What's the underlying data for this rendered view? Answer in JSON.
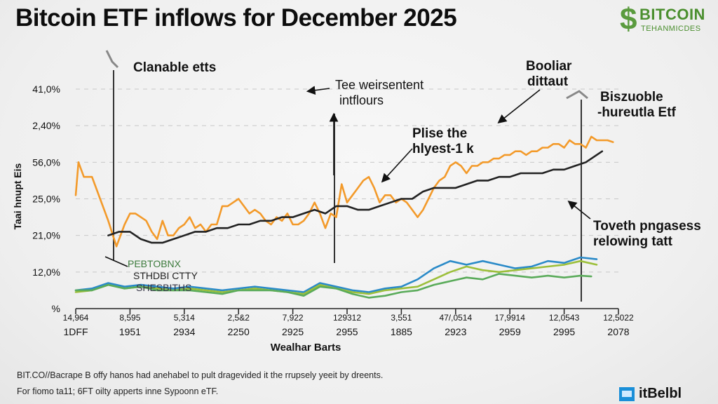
{
  "title": "Bitcoin ETF inflows for December 2025",
  "logo": {
    "brand": "BITCOIN",
    "tagline": "TEHANMICDES",
    "icon": "dollar-sign-icon"
  },
  "annotations": {
    "clanable": "Clanable etts",
    "weirsentent_line1": "Tee weirsentent",
    "weirsentent_line2": "intflours",
    "plise_line1": "Plise the",
    "plise_line2": "hlyest-1 k",
    "booliar_line1": "Booliar",
    "booliar_line2": "dittaut",
    "biszuoble_line1": "Biszuoble",
    "biszuoble_line2": "-hureutla Etf",
    "toveth_line1": "Toveth pngasess",
    "toveth_line2": "relowing tatt",
    "overlay_1": "PEBTOBNX",
    "overlay_2": "STHDBI CTTY",
    "overlay_3": "SHESBITHS"
  },
  "footer": {
    "line1": "BIT.CO//Bacrape B offy hanos had anehabel to pult dragevided it the rrupsely yeeit by dreents.",
    "line2": "For fiomo ta11; 6FT oilty apperts inne Sypoonn eTF."
  },
  "badge": {
    "text": "itBelbl",
    "icon": "screen-icon"
  },
  "colors": {
    "orange": "#f39a2a",
    "black": "#222222",
    "blue": "#2a8ac8",
    "yellowgreen": "#9cbf3a",
    "green": "#5aab5a",
    "grid": "#c8c8c8"
  },
  "chart_data": {
    "type": "line",
    "title": "Bitcoin ETF inflows for December 2025",
    "xlabel": "Wealhar Barts",
    "ylabel": "Taai hnupt Eis",
    "y_tick_labels": [
      "41,0%",
      "2,40%",
      "56,0%",
      "25,0%",
      "21,0%",
      "12,0%",
      "%"
    ],
    "ylim": [
      0,
      6
    ],
    "x_tick_labels_top": [
      "14,964",
      "8,595",
      "5,314",
      "2,5&2",
      "7,922",
      "129312",
      "3,551",
      "47/,0514",
      "17,9914",
      "12,0543",
      "12,5022"
    ],
    "x_tick_labels_bottom": [
      "1DFF",
      "1951",
      "2934",
      "2250",
      "2925",
      "2955",
      "1885",
      "2923",
      "2959",
      "2995",
      "2078"
    ],
    "xlim": [
      0,
      10
    ],
    "grid": true,
    "series": [
      {
        "name": "Orange",
        "color": "#f39a2a",
        "x": [
          0,
          0.05,
          0.15,
          0.3,
          0.45,
          0.6,
          0.75,
          0.9,
          1.0,
          1.1,
          1.2,
          1.3,
          1.4,
          1.5,
          1.6,
          1.7,
          1.8,
          1.9,
          2.0,
          2.1,
          2.2,
          2.3,
          2.4,
          2.5,
          2.6,
          2.7,
          2.8,
          2.9,
          3.0,
          3.1,
          3.2,
          3.3,
          3.4,
          3.5,
          3.6,
          3.7,
          3.8,
          3.9,
          4.0,
          4.1,
          4.2,
          4.3,
          4.4,
          4.5,
          4.6,
          4.7,
          4.8,
          4.9,
          5.0,
          5.1,
          5.2,
          5.3,
          5.4,
          5.5,
          5.6,
          5.7,
          5.8,
          5.9,
          6.0,
          6.1,
          6.2,
          6.3,
          6.4,
          6.5,
          6.6,
          6.7,
          6.8,
          6.9,
          7.0,
          7.1,
          7.2,
          7.3,
          7.4,
          7.5,
          7.6,
          7.7,
          7.8,
          7.9,
          8.0,
          8.1,
          8.2,
          8.3,
          8.4,
          8.5,
          8.6,
          8.7,
          8.8,
          8.9,
          9.0,
          9.1,
          9.2,
          9.3,
          9.4,
          9.5,
          9.6,
          9.7,
          9.8,
          9.9
        ],
        "y": [
          3.1,
          4.0,
          3.6,
          3.6,
          3.0,
          2.4,
          1.7,
          2.3,
          2.6,
          2.6,
          2.5,
          2.4,
          2.1,
          1.9,
          2.4,
          2.0,
          2.0,
          2.2,
          2.3,
          2.5,
          2.2,
          2.3,
          2.1,
          2.3,
          2.3,
          2.8,
          2.8,
          2.9,
          3.0,
          2.8,
          2.6,
          2.7,
          2.6,
          2.4,
          2.3,
          2.5,
          2.4,
          2.6,
          2.3,
          2.3,
          2.4,
          2.6,
          2.9,
          2.6,
          2.2,
          2.6,
          2.5,
          3.4,
          2.9,
          3.1,
          3.3,
          3.5,
          3.6,
          3.3,
          2.9,
          3.1,
          3.1,
          2.9,
          3.0,
          2.9,
          2.7,
          2.5,
          2.7,
          3.0,
          3.3,
          3.5,
          3.6,
          3.9,
          4.0,
          3.9,
          3.7,
          3.9,
          3.9,
          4.0,
          4.0,
          4.1,
          4.1,
          4.2,
          4.2,
          4.3,
          4.3,
          4.2,
          4.3,
          4.3,
          4.4,
          4.4,
          4.5,
          4.5,
          4.4,
          4.6,
          4.5,
          4.5,
          4.4,
          4.7,
          4.6,
          4.6,
          4.6,
          4.55
        ],
        "description": "Volatile orange series rising toward end of month"
      },
      {
        "name": "Black",
        "color": "#222222",
        "x": [
          0.6,
          0.8,
          1.0,
          1.2,
          1.4,
          1.6,
          1.8,
          2.0,
          2.2,
          2.4,
          2.6,
          2.8,
          3.0,
          3.2,
          3.4,
          3.6,
          3.8,
          4.0,
          4.2,
          4.4,
          4.6,
          4.8,
          5.0,
          5.2,
          5.4,
          5.6,
          5.8,
          6.0,
          6.2,
          6.4,
          6.6,
          6.8,
          7.0,
          7.2,
          7.4,
          7.6,
          7.8,
          8.0,
          8.2,
          8.4,
          8.6,
          8.8,
          9.0,
          9.2,
          9.4,
          9.6,
          9.7
        ],
        "y": [
          2.0,
          2.1,
          2.1,
          1.9,
          1.8,
          1.8,
          1.9,
          2.0,
          2.1,
          2.1,
          2.2,
          2.2,
          2.3,
          2.3,
          2.4,
          2.4,
          2.5,
          2.5,
          2.6,
          2.7,
          2.6,
          2.8,
          2.8,
          2.7,
          2.7,
          2.8,
          2.9,
          3.0,
          3.0,
          3.2,
          3.3,
          3.3,
          3.3,
          3.4,
          3.5,
          3.5,
          3.6,
          3.6,
          3.7,
          3.7,
          3.7,
          3.8,
          3.8,
          3.9,
          4.0,
          4.2,
          4.3
        ],
        "description": "Steady upward-trending black series"
      },
      {
        "name": "Blue",
        "color": "#2a8ac8",
        "x": [
          0,
          0.3,
          0.6,
          0.9,
          1.2,
          1.5,
          1.8,
          2.1,
          2.4,
          2.7,
          3.0,
          3.3,
          3.6,
          3.9,
          4.2,
          4.5,
          4.8,
          5.1,
          5.4,
          5.7,
          6.0,
          6.3,
          6.6,
          6.9,
          7.2,
          7.5,
          7.8,
          8.1,
          8.4,
          8.7,
          9.0,
          9.3,
          9.6
        ],
        "y": [
          0.5,
          0.55,
          0.7,
          0.6,
          0.65,
          0.6,
          0.55,
          0.6,
          0.55,
          0.5,
          0.55,
          0.6,
          0.55,
          0.5,
          0.45,
          0.7,
          0.6,
          0.5,
          0.45,
          0.55,
          0.6,
          0.8,
          1.1,
          1.3,
          1.2,
          1.3,
          1.2,
          1.1,
          1.15,
          1.3,
          1.25,
          1.4,
          1.35
        ],
        "description": "Low blue series rising near end"
      },
      {
        "name": "Yellow-green",
        "color": "#9cbf3a",
        "x": [
          0,
          0.3,
          0.6,
          0.9,
          1.2,
          1.5,
          1.8,
          2.1,
          2.4,
          2.7,
          3.0,
          3.3,
          3.6,
          3.9,
          4.2,
          4.5,
          4.8,
          5.1,
          5.4,
          5.7,
          6.0,
          6.3,
          6.6,
          6.9,
          7.2,
          7.5,
          7.8,
          8.1,
          8.4,
          8.7,
          9.0,
          9.3,
          9.6
        ],
        "y": [
          0.45,
          0.5,
          0.65,
          0.55,
          0.6,
          0.55,
          0.5,
          0.55,
          0.5,
          0.45,
          0.5,
          0.55,
          0.5,
          0.45,
          0.4,
          0.65,
          0.55,
          0.45,
          0.4,
          0.5,
          0.55,
          0.6,
          0.8,
          1.0,
          1.15,
          1.05,
          1.0,
          1.05,
          1.1,
          1.15,
          1.2,
          1.3,
          1.2
        ],
        "description": "Yellow-green series tracking blue"
      },
      {
        "name": "Green",
        "color": "#5aab5a",
        "x": [
          0,
          0.3,
          0.6,
          0.9,
          1.2,
          1.5,
          1.8,
          2.1,
          2.4,
          2.7,
          3.0,
          3.3,
          3.6,
          3.9,
          4.2,
          4.5,
          4.8,
          5.1,
          5.4,
          5.7,
          6.0,
          6.3,
          6.6,
          6.9,
          7.2,
          7.5,
          7.8,
          8.1,
          8.4,
          8.7,
          9.0,
          9.3,
          9.5
        ],
        "y": [
          0.5,
          0.5,
          0.65,
          0.55,
          0.6,
          0.5,
          0.5,
          0.5,
          0.45,
          0.4,
          0.5,
          0.5,
          0.5,
          0.45,
          0.35,
          0.6,
          0.55,
          0.4,
          0.3,
          0.35,
          0.45,
          0.5,
          0.65,
          0.75,
          0.85,
          0.8,
          0.95,
          0.9,
          0.85,
          0.9,
          0.85,
          0.9,
          0.88
        ],
        "description": "Green series, lowest of the lower group"
      }
    ]
  }
}
